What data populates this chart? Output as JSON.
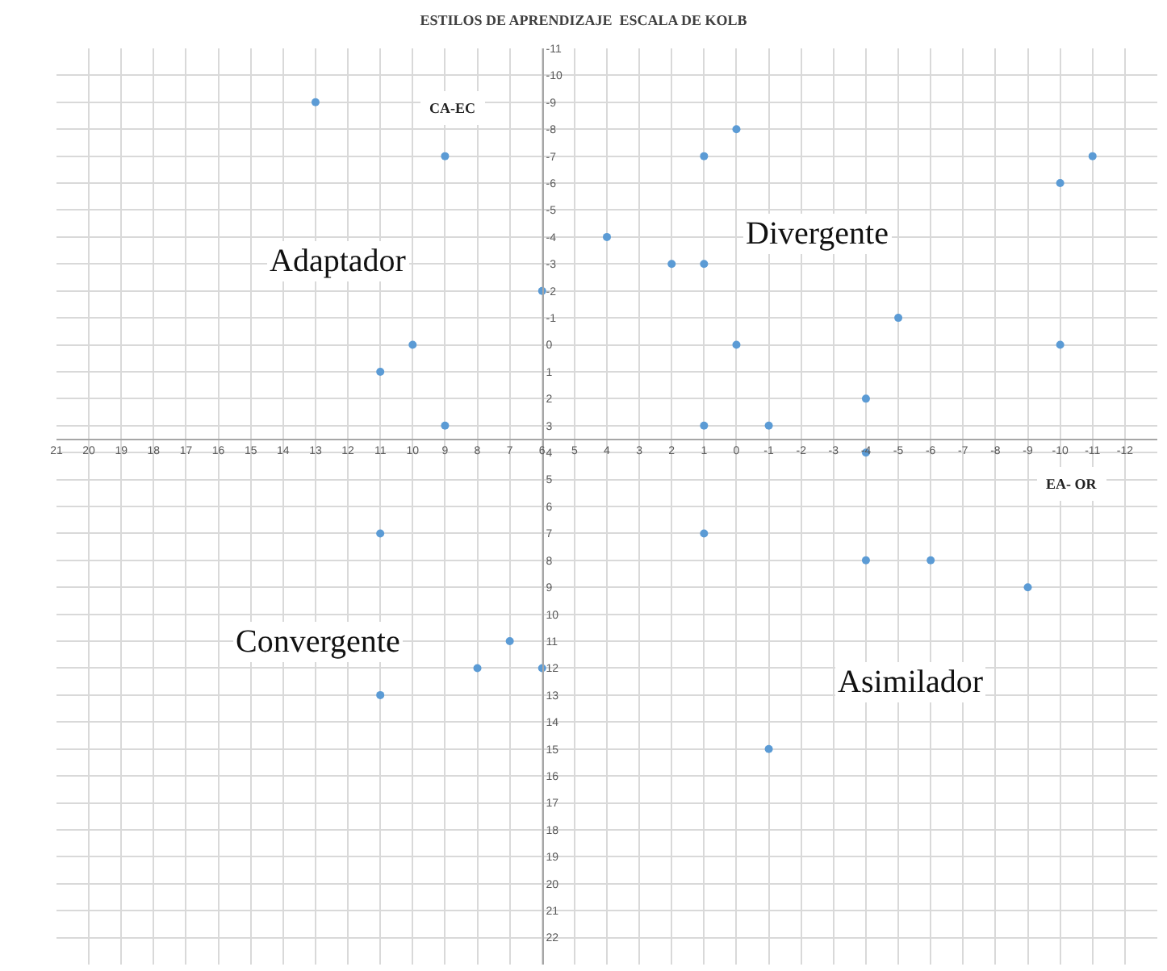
{
  "chart_data": {
    "type": "scatter",
    "title": "ESTILOS DE APRENDIZAJE  ESCALA DE KOLB",
    "xlabel": "EA- OR",
    "ylabel": "CA-EC",
    "annotations": [
      "Adaptador",
      "Divergente",
      "Convergente",
      "Asimilador"
    ],
    "x": [
      13,
      9,
      0,
      1,
      -10,
      -11,
      4,
      2,
      1,
      6,
      10,
      11,
      0,
      -5,
      -10,
      -4,
      9,
      1,
      -1,
      -4,
      11,
      1,
      -4,
      -6,
      -9,
      7,
      8,
      6,
      11,
      -1
    ],
    "series": [
      {
        "color": "#5b9bd5",
        "values": [
          -9,
          -7,
          -8,
          -7,
          -6,
          -7,
          -4,
          -3,
          -3,
          -2,
          0,
          1,
          0,
          -1,
          0,
          2,
          3,
          3,
          3,
          4,
          7,
          7,
          8,
          8,
          9,
          11,
          12,
          12,
          13,
          15
        ]
      }
    ],
    "xlim": [
      21,
      -13
    ],
    "xticks": [
      21,
      20,
      19,
      18,
      17,
      16,
      15,
      14,
      13,
      12,
      11,
      10,
      9,
      8,
      7,
      6,
      5,
      4,
      3,
      2,
      1,
      0,
      -1,
      -2,
      -3,
      -4,
      -5,
      -6,
      -7,
      -8,
      -9,
      -10,
      -11,
      -12
    ],
    "ylim": [
      23,
      -11
    ],
    "yticks": [
      -11,
      -10,
      -9,
      -8,
      -7,
      -6,
      -5,
      -4,
      -3,
      -2,
      -1,
      0,
      1,
      2,
      3,
      4,
      5,
      6,
      7,
      8,
      9,
      10,
      11,
      12,
      13,
      14,
      15,
      16,
      17,
      18,
      19,
      20,
      21,
      22
    ],
    "grid": true,
    "marker": "circle"
  }
}
